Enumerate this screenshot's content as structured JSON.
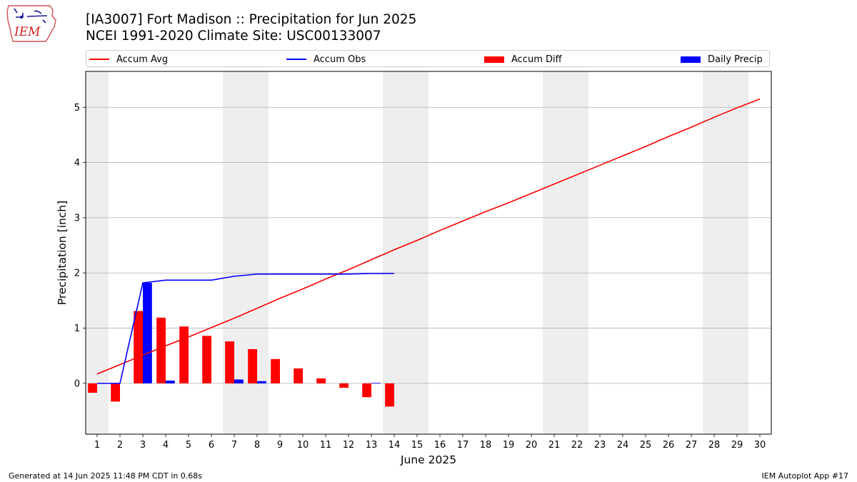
{
  "header": {
    "logo_text": "IEM",
    "title_line1": "[IA3007] Fort Madison :: Precipitation for Jun 2025",
    "title_line2": "NCEI 1991-2020 Climate Site: USC00133007"
  },
  "footer": {
    "generated": "Generated at 14 Jun 2025 11:48 PM CDT in 0.68s",
    "app": "IEM Autoplot App #17"
  },
  "colors": {
    "accum_avg": "#ff0000",
    "accum_obs": "#0000ff",
    "accum_diff": "#ff0000",
    "daily_precip": "#0000ff",
    "weekend_shade": "#eeeeee",
    "grid": "#b0b0b0"
  },
  "chart_data": {
    "type": "bar",
    "xlabel": "June 2025",
    "ylabel": "Precipitation [inch]",
    "xlim": [
      0.5,
      30.5
    ],
    "ylim": [
      -0.92,
      5.65
    ],
    "yticks": [
      0,
      1,
      2,
      3,
      4,
      5
    ],
    "grid": "horizontal",
    "legend_position": "top",
    "days": [
      1,
      2,
      3,
      4,
      5,
      6,
      7,
      8,
      9,
      10,
      11,
      12,
      13,
      14,
      15,
      16,
      17,
      18,
      19,
      20,
      21,
      22,
      23,
      24,
      25,
      26,
      27,
      28,
      29,
      30
    ],
    "weekend_days": [
      1,
      7,
      8,
      14,
      15,
      21,
      22,
      28,
      29
    ],
    "series": [
      {
        "name": "Accum Avg",
        "kind": "line",
        "x": [
          1,
          2,
          3,
          4,
          5,
          6,
          7,
          8,
          9,
          10,
          11,
          12,
          13,
          14,
          15,
          16,
          17,
          18,
          19,
          20,
          21,
          22,
          23,
          24,
          25,
          26,
          27,
          28,
          29,
          30
        ],
        "values": [
          0.17,
          0.34,
          0.51,
          0.68,
          0.84,
          1.01,
          1.18,
          1.36,
          1.54,
          1.71,
          1.89,
          2.06,
          2.24,
          2.42,
          2.59,
          2.77,
          2.94,
          3.11,
          3.27,
          3.44,
          3.61,
          3.78,
          3.95,
          4.12,
          4.29,
          4.47,
          4.64,
          4.82,
          4.99,
          5.15
        ]
      },
      {
        "name": "Accum Obs",
        "kind": "line",
        "x": [
          1,
          2,
          3,
          4,
          5,
          6,
          7,
          8,
          9,
          10,
          11,
          12,
          13,
          14
        ],
        "values": [
          0.0,
          0.0,
          1.82,
          1.87,
          1.87,
          1.87,
          1.94,
          1.98,
          1.98,
          1.98,
          1.98,
          1.98,
          1.99,
          1.99
        ]
      },
      {
        "name": "Accum Diff",
        "kind": "bar",
        "x": [
          1,
          2,
          3,
          4,
          5,
          6,
          7,
          8,
          9,
          10,
          11,
          12,
          13,
          14
        ],
        "values": [
          -0.17,
          -0.33,
          1.31,
          1.19,
          1.03,
          0.86,
          0.76,
          0.62,
          0.44,
          0.27,
          0.09,
          -0.08,
          -0.25,
          -0.42
        ]
      },
      {
        "name": "Daily Precip",
        "kind": "bar",
        "x": [
          1,
          2,
          3,
          4,
          5,
          6,
          7,
          8,
          9,
          10,
          11,
          12,
          13,
          14
        ],
        "values": [
          0.0,
          0.0,
          1.82,
          0.05,
          0.0,
          0.0,
          0.07,
          0.04,
          0.0,
          0.0,
          0.0,
          0.0,
          0.01,
          0.0
        ]
      }
    ]
  }
}
